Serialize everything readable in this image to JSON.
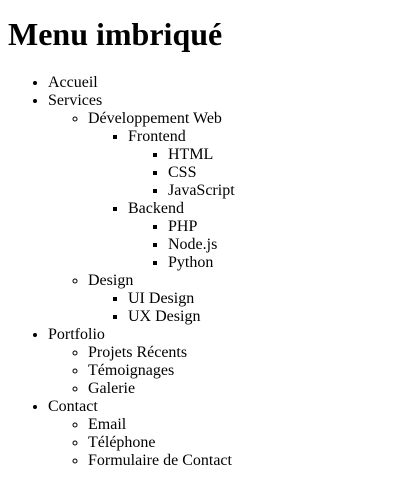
{
  "page": {
    "title": "Menu imbriqué"
  },
  "menu": {
    "accueil": "Accueil",
    "services": {
      "label": "Services",
      "dev_web": {
        "label": "Développement Web",
        "frontend": {
          "label": "Frontend",
          "items": [
            "HTML",
            "CSS",
            "JavaScript"
          ]
        },
        "backend": {
          "label": "Backend",
          "items": [
            "PHP",
            "Node.js",
            "Python"
          ]
        }
      },
      "design": {
        "label": "Design",
        "items": [
          "UI Design",
          "UX Design"
        ]
      }
    },
    "portfolio": {
      "label": "Portfolio",
      "items": [
        "Projets Récents",
        "Témoignages",
        "Galerie"
      ]
    },
    "contact": {
      "label": "Contact",
      "items": [
        "Email",
        "Téléphone",
        "Formulaire de Contact"
      ]
    }
  }
}
